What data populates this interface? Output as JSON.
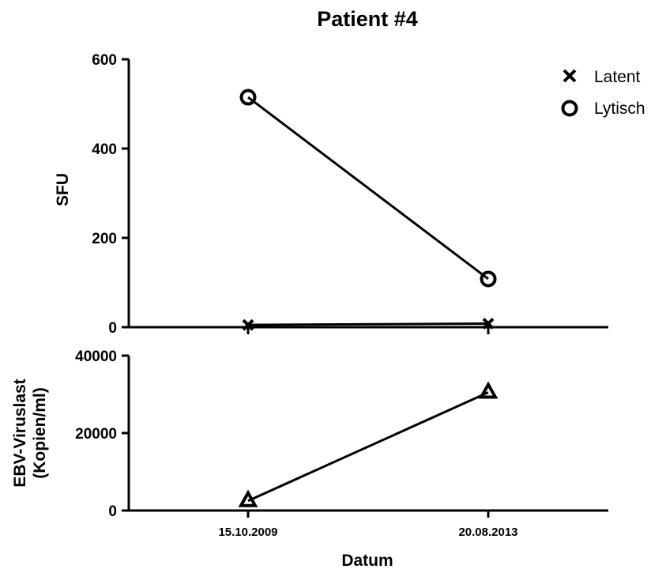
{
  "chart_data": [
    {
      "type": "line",
      "title": "Patient #4",
      "ylabel": "SFU",
      "ylim": [
        0,
        600
      ],
      "yticks": [
        0,
        200,
        400,
        600
      ],
      "categories": [
        "15.10.2009",
        "20.08.2013"
      ],
      "legend": "top-right",
      "series": [
        {
          "name": "Latent",
          "marker": "x",
          "values": [
            5,
            8
          ]
        },
        {
          "name": "Lytisch",
          "marker": "circle",
          "values": [
            515,
            108
          ]
        }
      ]
    },
    {
      "type": "line",
      "ylabel_lines": [
        "EBV-Viruslast",
        "(Kopien/ml)"
      ],
      "xlabel": "Datum",
      "ylim": [
        0,
        40000
      ],
      "yticks": [
        0,
        20000,
        40000
      ],
      "categories": [
        "15.10.2009",
        "20.08.2013"
      ],
      "series": [
        {
          "marker": "triangle",
          "values": [
            2500,
            30500
          ]
        }
      ]
    }
  ]
}
